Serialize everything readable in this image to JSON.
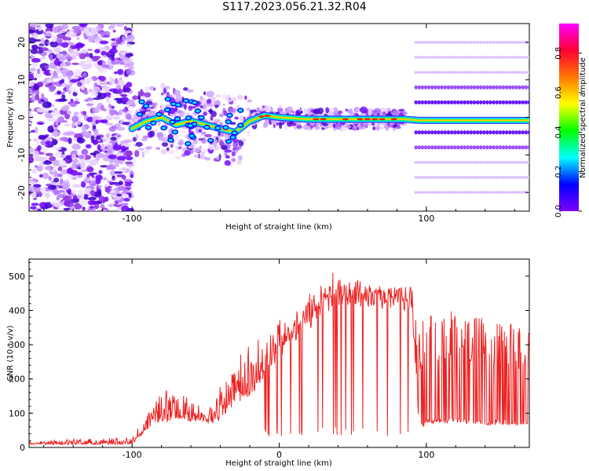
{
  "figure_title": "S117.2023.056.21.32.R04",
  "chart_data": [
    {
      "type": "heatmap",
      "xlabel": "Height of straight line (km)",
      "ylabel": "Frequency (Hz)",
      "xlim": [
        -170,
        170
      ],
      "ylim": [
        -25,
        25
      ],
      "x_ticks": [
        -100,
        100
      ],
      "y_ticks": [
        -20,
        -10,
        0,
        10,
        20
      ],
      "grid": false,
      "colorbar": {
        "label": "Normalized spectral amplitude",
        "range": [
          0,
          0.95
        ],
        "ticks": [
          0.0,
          0.2,
          0.4,
          0.6,
          0.8
        ],
        "colormap": [
          "#ff00ff",
          "#ff0033",
          "#ff7700",
          "#ffff00",
          "#00ff00",
          "#00ffff",
          "#0000ff",
          "#7f00ff"
        ]
      },
      "ridge": {
        "x": [
          -100,
          -90,
          -80,
          -70,
          -60,
          -50,
          -40,
          -30,
          -20,
          -10,
          0,
          20,
          40,
          60,
          85,
          95,
          120,
          140,
          165
        ],
        "y": [
          -3,
          -1,
          0,
          -2,
          -1,
          -2,
          -3,
          -4,
          -1,
          0.5,
          0,
          -0.5,
          -0.5,
          -0.5,
          -0.5,
          -0.8,
          -0.8,
          -0.8,
          -0.8
        ],
        "peak_amplitude": 0.95
      },
      "harmonic_lines_hz": [
        20,
        16,
        12,
        8,
        4,
        -4,
        -8,
        -12,
        -16,
        -20
      ]
    },
    {
      "type": "line",
      "xlabel": "Height of straight line (km)",
      "ylabel": "SNR (10 * v/v)",
      "xlim": [
        -170,
        170
      ],
      "ylim": [
        0,
        550
      ],
      "x_ticks": [
        -100,
        0,
        100
      ],
      "y_ticks": [
        0,
        100,
        200,
        300,
        400,
        500
      ],
      "grid": false,
      "series": [
        {
          "color": "#ee2222",
          "x": [
            -170,
            -100,
            -90,
            -80,
            -70,
            -60,
            -50,
            -40,
            -30,
            -20,
            -10,
            0,
            10,
            20,
            30,
            40,
            50,
            60,
            70,
            80,
            90,
            95,
            100,
            110,
            120,
            130,
            140,
            150,
            160,
            170
          ],
          "values": [
            10,
            10,
            60,
            80,
            90,
            85,
            80,
            90,
            150,
            170,
            230,
            300,
            360,
            400,
            440,
            470,
            480,
            480,
            470,
            470,
            470,
            50,
            65,
            70,
            70,
            65,
            65,
            65,
            65,
            65
          ],
          "upper_envelope": [
            20,
            30,
            100,
            170,
            180,
            150,
            120,
            180,
            280,
            330,
            350,
            380,
            420,
            470,
            510,
            520,
            500,
            490,
            480,
            480,
            500,
            350,
            390,
            400,
            400,
            380,
            380,
            370,
            360,
            370
          ]
        }
      ]
    }
  ]
}
